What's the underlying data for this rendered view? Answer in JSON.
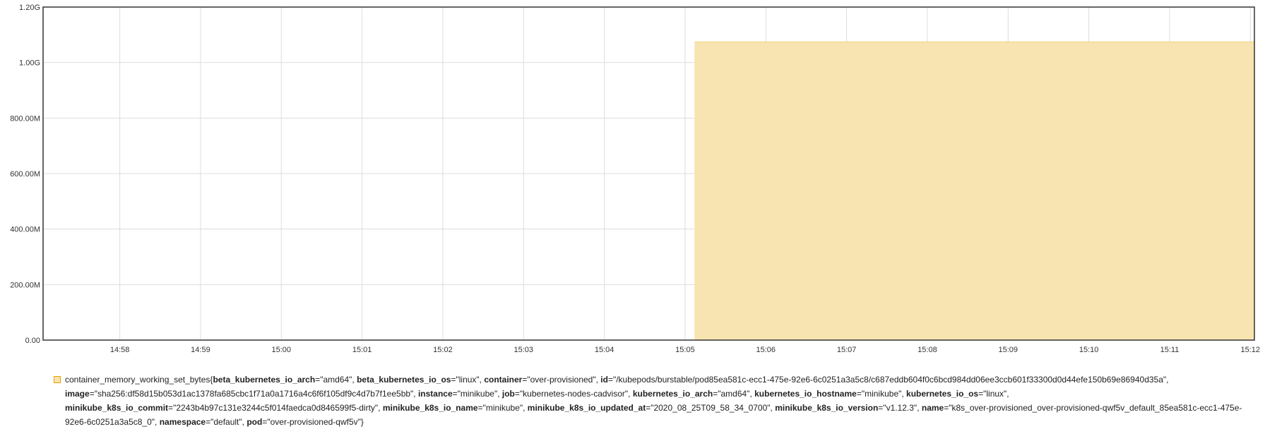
{
  "chart_data": {
    "type": "area",
    "title": "",
    "xlabel": "",
    "ylabel": "",
    "x_ticks": [
      "14:58",
      "14:59",
      "15:00",
      "15:01",
      "15:02",
      "15:03",
      "15:04",
      "15:05",
      "15:06",
      "15:07",
      "15:08",
      "15:09",
      "15:10",
      "15:11",
      "15:12"
    ],
    "y_ticks": [
      {
        "value": 0,
        "label": "0.00"
      },
      {
        "value": 200000000,
        "label": "200.00M"
      },
      {
        "value": 400000000,
        "label": "400.00M"
      },
      {
        "value": 600000000,
        "label": "600.00M"
      },
      {
        "value": 800000000,
        "label": "800.00M"
      },
      {
        "value": 1000000000,
        "label": "1.00G"
      },
      {
        "value": 1200000000,
        "label": "1.20G"
      }
    ],
    "xlim": [
      "14:57:03",
      "15:12:03"
    ],
    "ylim": [
      0,
      1200000000
    ],
    "grid": true,
    "legend_position": "bottom",
    "series": [
      {
        "metric": "container_memory_working_set_bytes",
        "color": "#f7e4b0",
        "border_color": "#e8a300",
        "x": [
          "15:05:07",
          "15:12:03"
        ],
        "values": [
          1075000000,
          1075000000
        ],
        "labels": [
          {
            "key": "beta_kubernetes_io_arch",
            "value": "amd64"
          },
          {
            "key": "beta_kubernetes_io_os",
            "value": "linux"
          },
          {
            "key": "container",
            "value": "over-provisioned"
          },
          {
            "key": "id",
            "value": "/kubepods/burstable/pod85ea581c-ecc1-475e-92e6-6c0251a3a5c8/c687eddb604f0c6bcd984dd06ee3ccb601f33300d0d44efe150b69e86940d35a"
          },
          {
            "key": "image",
            "value": "sha256:df58d15b053d1ac1378fa685cbc1f71a0a1716a4c6f6f105df9c4d7b7f1ee5bb"
          },
          {
            "key": "instance",
            "value": "minikube"
          },
          {
            "key": "job",
            "value": "kubernetes-nodes-cadvisor"
          },
          {
            "key": "kubernetes_io_arch",
            "value": "amd64"
          },
          {
            "key": "kubernetes_io_hostname",
            "value": "minikube"
          },
          {
            "key": "kubernetes_io_os",
            "value": "linux"
          },
          {
            "key": "minikube_k8s_io_commit",
            "value": "2243b4b97c131e3244c5f014faedca0d846599f5-dirty"
          },
          {
            "key": "minikube_k8s_io_name",
            "value": "minikube"
          },
          {
            "key": "minikube_k8s_io_updated_at",
            "value": "2020_08_25T09_58_34_0700"
          },
          {
            "key": "minikube_k8s_io_version",
            "value": "v1.12.3"
          },
          {
            "key": "name",
            "value": "k8s_over-provisioned_over-provisioned-qwf5v_default_85ea581c-ecc1-475e-92e6-6c0251a3a5c8_0"
          },
          {
            "key": "namespace",
            "value": "default"
          },
          {
            "key": "pod",
            "value": "over-provisioned-qwf5v"
          }
        ]
      }
    ]
  }
}
